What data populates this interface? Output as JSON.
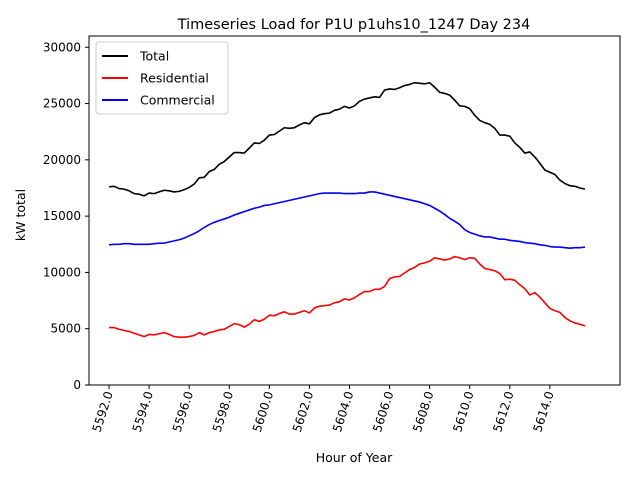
{
  "chart_data": {
    "type": "line",
    "title": "Timeseries Load for P1U p1uhs10_1247  Day 234",
    "xlabel": "Hour of Year",
    "ylabel": "kW total",
    "xlim": [
      5591,
      5617.5
    ],
    "ylim": [
      0,
      31000
    ],
    "x_ticks": [
      5592,
      5594,
      5596,
      5598,
      5600,
      5602,
      5604,
      5606,
      5608,
      5610,
      5612,
      5614
    ],
    "x_tick_labels": [
      "5592.0",
      "5594.0",
      "5596.0",
      "5598.0",
      "5600.0",
      "5602.0",
      "5604.0",
      "5606.0",
      "5608.0",
      "5610.0",
      "5612.0",
      "5614.0"
    ],
    "y_ticks": [
      0,
      5000,
      10000,
      15000,
      20000,
      25000,
      30000
    ],
    "y_tick_labels": [
      "0",
      "5000",
      "10000",
      "15000",
      "20000",
      "25000",
      "30000"
    ],
    "legend_position": "upper-left",
    "grid": false,
    "x": [
      5592.0,
      5592.25,
      5592.5,
      5592.75,
      5593.0,
      5593.25,
      5593.5,
      5593.75,
      5594.0,
      5594.25,
      5594.5,
      5594.75,
      5595.0,
      5595.25,
      5595.5,
      5595.75,
      5596.0,
      5596.25,
      5596.5,
      5596.75,
      5597.0,
      5597.25,
      5597.5,
      5597.75,
      5598.0,
      5598.25,
      5598.5,
      5598.75,
      5599.0,
      5599.25,
      5599.5,
      5599.75,
      5600.0,
      5600.25,
      5600.5,
      5600.75,
      5601.0,
      5601.25,
      5601.5,
      5601.75,
      5602.0,
      5602.25,
      5602.5,
      5602.75,
      5603.0,
      5603.25,
      5603.5,
      5603.75,
      5604.0,
      5604.25,
      5604.5,
      5604.75,
      5605.0,
      5605.25,
      5605.5,
      5605.75,
      5606.0,
      5606.25,
      5606.5,
      5606.75,
      5607.0,
      5607.25,
      5607.5,
      5607.75,
      5608.0,
      5608.25,
      5608.5,
      5608.75,
      5609.0,
      5609.25,
      5609.5,
      5609.75,
      5610.0,
      5610.25,
      5610.5,
      5610.75,
      5611.0,
      5611.25,
      5611.5,
      5611.75,
      5612.0,
      5612.25,
      5612.5,
      5612.75,
      5613.0,
      5613.25,
      5613.5,
      5613.75,
      5614.0,
      5614.25,
      5614.5,
      5614.75,
      5615.0,
      5615.25,
      5615.5,
      5615.75
    ],
    "series": [
      {
        "name": "Total",
        "color": "#000000",
        "values": [
          17600,
          17650,
          17450,
          17400,
          17250,
          17000,
          16950,
          16800,
          17050,
          17000,
          17150,
          17300,
          17250,
          17150,
          17200,
          17350,
          17550,
          17850,
          18400,
          18450,
          18950,
          19150,
          19600,
          19850,
          20250,
          20650,
          20650,
          20600,
          21050,
          21500,
          21450,
          21750,
          22200,
          22250,
          22550,
          22850,
          22800,
          22850,
          23100,
          23300,
          23200,
          23750,
          24000,
          24100,
          24150,
          24400,
          24500,
          24750,
          24600,
          24800,
          25200,
          25400,
          25500,
          25600,
          25550,
          26200,
          26300,
          26250,
          26400,
          26600,
          26700,
          26850,
          26800,
          26750,
          26850,
          26450,
          26000,
          25900,
          25750,
          25300,
          24800,
          24750,
          24550,
          23950,
          23500,
          23300,
          23150,
          22800,
          22200,
          22200,
          22100,
          21500,
          21100,
          20600,
          20700,
          20250,
          19700,
          19100,
          18900,
          18700,
          18200,
          17900,
          17700,
          17650,
          17500,
          17400
        ]
      },
      {
        "name": "Residential",
        "color": "#ff0000",
        "values": [
          5100,
          5100,
          4950,
          4850,
          4750,
          4600,
          4450,
          4300,
          4500,
          4450,
          4550,
          4650,
          4500,
          4300,
          4250,
          4250,
          4300,
          4400,
          4650,
          4450,
          4650,
          4750,
          4900,
          4950,
          5200,
          5450,
          5350,
          5150,
          5400,
          5800,
          5650,
          5850,
          6200,
          6150,
          6350,
          6500,
          6300,
          6300,
          6450,
          6600,
          6400,
          6850,
          7000,
          7050,
          7100,
          7300,
          7400,
          7650,
          7550,
          7750,
          8050,
          8300,
          8300,
          8500,
          8500,
          8750,
          9450,
          9600,
          9650,
          9950,
          10250,
          10450,
          10750,
          10850,
          11000,
          11300,
          11200,
          11100,
          11200,
          11400,
          11300,
          11150,
          11300,
          11250,
          10750,
          10350,
          10250,
          10150,
          9900,
          9350,
          9400,
          9300,
          8900,
          8550,
          8000,
          8200,
          7800,
          7300,
          6800,
          6600,
          6450,
          6000,
          5700,
          5500,
          5400,
          5250
        ]
      },
      {
        "name": "Commercial",
        "color": "#0000ff",
        "values": [
          12450,
          12500,
          12500,
          12550,
          12550,
          12500,
          12500,
          12500,
          12500,
          12550,
          12600,
          12600,
          12700,
          12800,
          12900,
          13050,
          13250,
          13450,
          13700,
          14000,
          14250,
          14450,
          14600,
          14750,
          14900,
          15100,
          15250,
          15400,
          15550,
          15700,
          15800,
          15950,
          16000,
          16100,
          16200,
          16300,
          16400,
          16500,
          16600,
          16700,
          16800,
          16900,
          17000,
          17050,
          17050,
          17050,
          17050,
          17000,
          17000,
          17000,
          17050,
          17050,
          17150,
          17150,
          17050,
          16950,
          16850,
          16750,
          16650,
          16550,
          16450,
          16350,
          16250,
          16100,
          15950,
          15700,
          15450,
          15150,
          14800,
          14550,
          14250,
          13800,
          13550,
          13400,
          13250,
          13150,
          13150,
          13050,
          12950,
          12950,
          12850,
          12800,
          12750,
          12650,
          12600,
          12550,
          12450,
          12400,
          12300,
          12250,
          12250,
          12200,
          12150,
          12200,
          12200,
          12250
        ]
      }
    ]
  }
}
